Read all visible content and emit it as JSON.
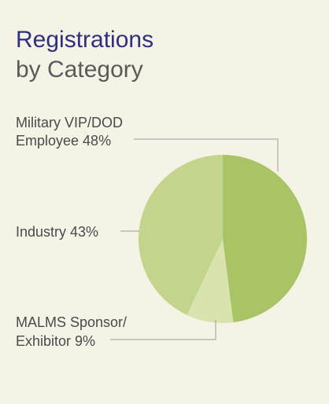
{
  "title": {
    "line1": "Registrations",
    "line2": "by Category"
  },
  "chart_data": {
    "type": "pie",
    "slices": [
      {
        "label_line1": "Military VIP/DOD",
        "label_line2": "Employee 48%",
        "value": 48,
        "color": "#a9c464"
      },
      {
        "label_line1": "MALMS Sponsor/",
        "label_line2": "Exhibitor 9%",
        "value": 9,
        "color": "#d8e3ad"
      },
      {
        "label_line1": "Industry 43%",
        "label_line2": "",
        "value": 43,
        "color": "#c3d58c"
      }
    ],
    "leader_line_color": "#9a9a9a"
  }
}
